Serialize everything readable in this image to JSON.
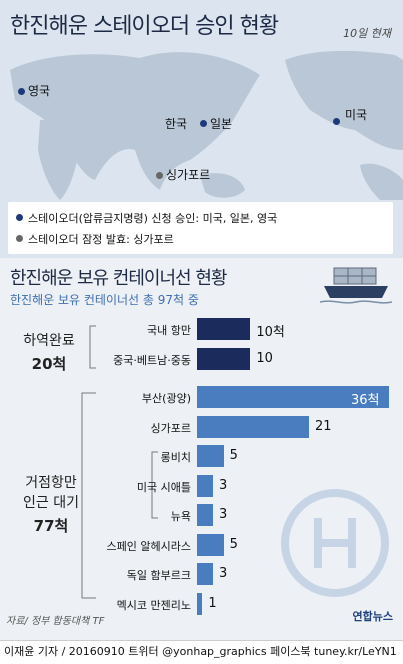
{
  "header": {
    "title": "한진해운 스테이오더 승인 현황",
    "as_of": "10일 현재"
  },
  "map": {
    "labels": {
      "uk": "영국",
      "korea": "한국",
      "japan": "일본",
      "usa": "미국",
      "singapore": "싱가포르"
    },
    "colors": {
      "approved": "#1f3a7a",
      "provisional": "#666666"
    }
  },
  "legend": {
    "approved": "스테이오더(압류금지명령) 신청 승인: 미국, 일본, 영국",
    "provisional": "스테이오더 잠정 발효: 싱가포르"
  },
  "chart_data": {
    "type": "bar",
    "title": "한진해운 보유 컨테이너선 현황",
    "subtitle": "한진해운 보유 컨테이너선 총 97척 중",
    "unit": "척",
    "groups": [
      {
        "name": "하역완료",
        "total": "20척",
        "categories": [
          "국내 항만",
          "중국·베트남·중동"
        ],
        "values": [
          10,
          10
        ],
        "value_labels": [
          "10척",
          "10"
        ],
        "color": "#1a2b5c"
      },
      {
        "name": "거점항만 인근 대기",
        "total": "77척",
        "categories": [
          "부산(광양)",
          "싱가포르",
          "롱비치",
          "미국 시애틀",
          "뉴욕",
          "스페인 알헤시라스",
          "독일 함부르크",
          "멕시코 만젠리노"
        ],
        "values": [
          36,
          21,
          5,
          3,
          3,
          5,
          3,
          1
        ],
        "value_labels": [
          "36척",
          "21",
          "5",
          "3",
          "3",
          "5",
          "3",
          "1"
        ],
        "color": "#4a7cc0"
      }
    ],
    "group_labels": {
      "g1_line1": "하역완료",
      "g1_total": "20척",
      "g2_line1": "거점항만",
      "g2_line2": "인근 대기",
      "g2_total": "77척"
    }
  },
  "source": "자료/ 정부 합동대책 TF",
  "brand": "연합뉴스",
  "footer": "이재윤 기자 / 20160910  트위터 @yonhap_graphics  페이스북 tuney.kr/LeYN1"
}
